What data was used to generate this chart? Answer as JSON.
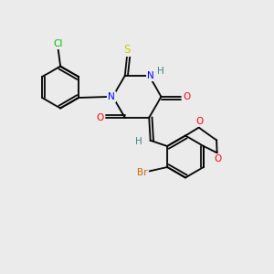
{
  "bg_color": "#ebebeb",
  "bond_color": "#000000",
  "atom_colors": {
    "N": "#0000ff",
    "O": "#ff0000",
    "S": "#cccc00",
    "Cl": "#00bb00",
    "Br": "#cc6600",
    "H": "#408080",
    "C": "#000000"
  },
  "font_size": 7.5,
  "lw": 1.3
}
